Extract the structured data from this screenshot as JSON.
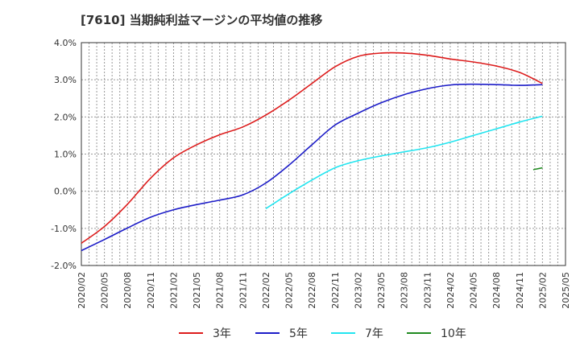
{
  "chart_data": {
    "type": "line",
    "title": "[7610]  当期純利益マージンの平均値の推移",
    "xlabel": "",
    "ylabel": "",
    "ylim": [
      -2.0,
      4.0
    ],
    "y_ticks": [
      "4.0%",
      "3.0%",
      "2.0%",
      "1.0%",
      "0.0%",
      "-1.0%",
      "-2.0%"
    ],
    "y_tick_values": [
      4.0,
      3.0,
      2.0,
      1.0,
      0.0,
      -1.0,
      -2.0
    ],
    "x_ticks": [
      "2020/02",
      "2020/05",
      "2020/08",
      "2020/11",
      "2021/02",
      "2021/05",
      "2021/08",
      "2021/11",
      "2022/02",
      "2022/05",
      "2022/08",
      "2022/11",
      "2023/02",
      "2023/05",
      "2023/08",
      "2023/11",
      "2024/02",
      "2024/05",
      "2024/08",
      "2024/11",
      "2025/02",
      "2025/05"
    ],
    "grid": true,
    "legend_position": "bottom",
    "series": [
      {
        "name": "3年",
        "color": "#dd1c1c",
        "values": [
          [
            0,
            -1.4
          ],
          [
            1,
            -0.95
          ],
          [
            2,
            -0.35
          ],
          [
            3,
            0.35
          ],
          [
            4,
            0.9
          ],
          [
            5,
            1.25
          ],
          [
            6,
            1.52
          ],
          [
            7,
            1.73
          ],
          [
            8,
            2.05
          ],
          [
            9,
            2.45
          ],
          [
            10,
            2.9
          ],
          [
            11,
            3.35
          ],
          [
            12,
            3.63
          ],
          [
            13,
            3.72
          ],
          [
            14,
            3.72
          ],
          [
            15,
            3.66
          ],
          [
            16,
            3.56
          ],
          [
            17,
            3.48
          ],
          [
            18,
            3.37
          ],
          [
            19,
            3.2
          ],
          [
            20,
            2.9
          ]
        ]
      },
      {
        "name": "5年",
        "color": "#1c1cc8",
        "values": [
          [
            0,
            -1.6
          ],
          [
            1,
            -1.3
          ],
          [
            2,
            -0.99
          ],
          [
            3,
            -0.7
          ],
          [
            4,
            -0.5
          ],
          [
            5,
            -0.36
          ],
          [
            6,
            -0.24
          ],
          [
            7,
            -0.1
          ],
          [
            8,
            0.22
          ],
          [
            9,
            0.7
          ],
          [
            10,
            1.25
          ],
          [
            11,
            1.78
          ],
          [
            12,
            2.1
          ],
          [
            13,
            2.38
          ],
          [
            14,
            2.6
          ],
          [
            15,
            2.76
          ],
          [
            16,
            2.86
          ],
          [
            17,
            2.88
          ],
          [
            18,
            2.87
          ],
          [
            19,
            2.85
          ],
          [
            20,
            2.87
          ]
        ]
      },
      {
        "name": "7年",
        "color": "#22e5f0",
        "values": [
          [
            8,
            -0.47
          ],
          [
            9,
            -0.07
          ],
          [
            10,
            0.3
          ],
          [
            11,
            0.63
          ],
          [
            12,
            0.82
          ],
          [
            13,
            0.95
          ],
          [
            14,
            1.06
          ],
          [
            15,
            1.17
          ],
          [
            16,
            1.32
          ],
          [
            17,
            1.5
          ],
          [
            18,
            1.68
          ],
          [
            19,
            1.86
          ],
          [
            20,
            2.02
          ]
        ]
      },
      {
        "name": "10年",
        "color": "#208a20",
        "values": [
          [
            19.6,
            0.58
          ],
          [
            20,
            0.63
          ]
        ]
      }
    ]
  }
}
